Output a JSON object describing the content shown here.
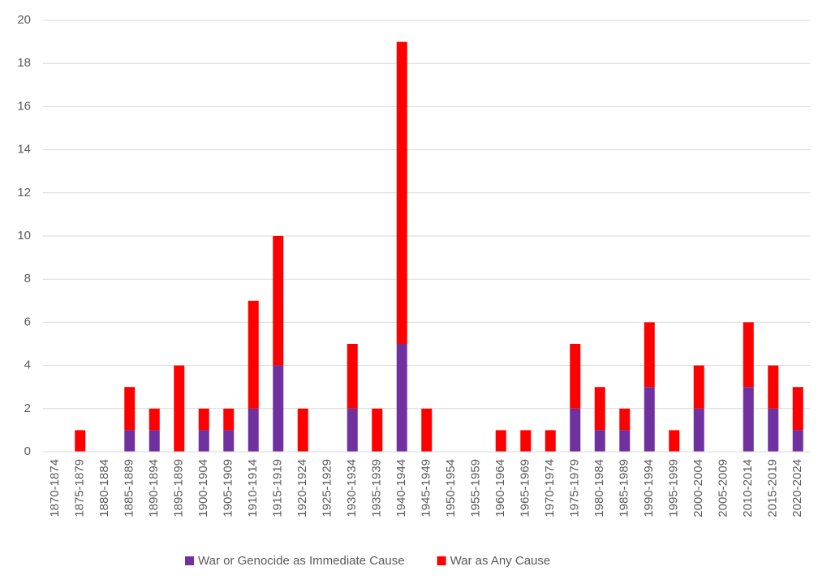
{
  "chart_data": {
    "type": "stacked-bar",
    "categories": [
      "1870-1874",
      "1875-1879",
      "1880-1884",
      "1885-1889",
      "1890-1894",
      "1895-1899",
      "1900-1904",
      "1905-1909",
      "1910-1914",
      "1915-1919",
      "1920-1924",
      "1925-1929",
      "1930-1934",
      "1935-1939",
      "1940-1944",
      "1945-1949",
      "1950-1954",
      "1955-1959",
      "1960-1964",
      "1965-1969",
      "1970-1974",
      "1975-1979",
      "1980-1984",
      "1985-1989",
      "1990-1994",
      "1995-1999",
      "2000-2004",
      "2005-2009",
      "2010-2014",
      "2015-2019",
      "2020-2024"
    ],
    "series": [
      {
        "name": "War or Genocide as Immediate Cause",
        "color": "#7030a0",
        "values": [
          0,
          0,
          0,
          1,
          1,
          0,
          1,
          1,
          2,
          4,
          0,
          0,
          2,
          0,
          5,
          0,
          0,
          0,
          0,
          0,
          0,
          2,
          1,
          1,
          3,
          0,
          2,
          0,
          3,
          2,
          1
        ]
      },
      {
        "name": "War as Any Cause",
        "color": "#ff0000",
        "values": [
          0,
          1,
          0,
          2,
          1,
          4,
          1,
          1,
          5,
          6,
          2,
          0,
          3,
          2,
          14,
          2,
          0,
          0,
          1,
          1,
          1,
          3,
          2,
          1,
          3,
          1,
          2,
          0,
          3,
          2,
          2
        ]
      }
    ],
    "ylim": [
      0,
      20
    ],
    "yticks": [
      0,
      2,
      4,
      6,
      8,
      10,
      12,
      14,
      16,
      18,
      20
    ],
    "grid": true,
    "legend": "bottom"
  }
}
